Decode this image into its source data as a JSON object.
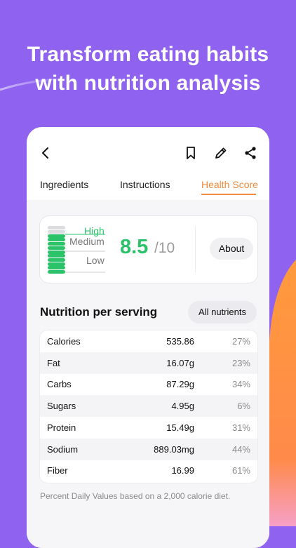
{
  "headline": {
    "line1": "Transform eating habits",
    "line2": "with nutrition analysis"
  },
  "topbar": {
    "icons": [
      "back-icon",
      "bookmark-icon",
      "edit-icon",
      "share-icon"
    ]
  },
  "tabs": [
    {
      "label": "Ingredients",
      "active": false
    },
    {
      "label": "Instructions",
      "active": false
    },
    {
      "label": "Health Score",
      "active": true
    }
  ],
  "health_score": {
    "levels": {
      "high": "High",
      "medium": "Medium",
      "low": "Low"
    },
    "score": "8.5",
    "max": "/10",
    "filled_bars": 10,
    "total_bars": 12,
    "about_label": "About"
  },
  "nutrition": {
    "title": "Nutrition per serving",
    "all_button": "All nutrients",
    "rows": [
      {
        "name": "Calories",
        "value": "535.86",
        "pct": "27%"
      },
      {
        "name": "Fat",
        "value": "16.07g",
        "pct": "23%"
      },
      {
        "name": "Carbs",
        "value": "87.29g",
        "pct": "34%"
      },
      {
        "name": "Sugars",
        "value": "4.95g",
        "pct": "6%"
      },
      {
        "name": "Protein",
        "value": "15.49g",
        "pct": "31%"
      },
      {
        "name": "Sodium",
        "value": "889.03mg",
        "pct": "44%"
      },
      {
        "name": "Fiber",
        "value": "16.99",
        "pct": "61%"
      }
    ],
    "footnote": "Percent Daily Values based on a 2,000 calorie diet."
  },
  "colors": {
    "background": "#8f63f0",
    "accent": "#f08a3c",
    "score_green": "#2cc26a"
  }
}
